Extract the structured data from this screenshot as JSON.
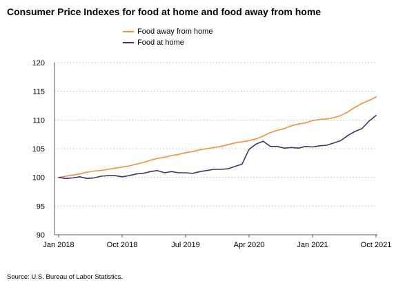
{
  "title": "Consumer Price Indexes for food at home and food away from home",
  "source": "Source: U.S. Bureau of Labor Statistics.",
  "colors": {
    "away": "#f0913a",
    "home": "#4a2f6e",
    "grid": "#bbbbbb",
    "axis": "#555555"
  },
  "chart_data": {
    "type": "line",
    "title": "Consumer Price Indexes for food at home and food away from home",
    "xlabel": "",
    "ylabel": "",
    "ylim": [
      90,
      120
    ],
    "yticks": [
      90,
      95,
      100,
      105,
      110,
      115,
      120
    ],
    "grid": "horizontal dotted",
    "legend_position": "top-center",
    "x": [
      "Jan 2018",
      "Feb 2018",
      "Mar 2018",
      "Apr 2018",
      "May 2018",
      "Jun 2018",
      "Jul 2018",
      "Aug 2018",
      "Sep 2018",
      "Oct 2018",
      "Nov 2018",
      "Dec 2018",
      "Jan 2019",
      "Feb 2019",
      "Mar 2019",
      "Apr 2019",
      "May 2019",
      "Jun 2019",
      "Jul 2019",
      "Aug 2019",
      "Sep 2019",
      "Oct 2019",
      "Nov 2019",
      "Dec 2019",
      "Jan 2020",
      "Feb 2020",
      "Mar 2020",
      "Apr 2020",
      "May 2020",
      "Jun 2020",
      "Jul 2020",
      "Aug 2020",
      "Sep 2020",
      "Oct 2020",
      "Nov 2020",
      "Dec 2020",
      "Jan 2021",
      "Feb 2021",
      "Mar 2021",
      "Apr 2021",
      "May 2021",
      "Jun 2021",
      "Jul 2021",
      "Aug 2021",
      "Sep 2021",
      "Oct 2021"
    ],
    "xtick_labels": [
      "Jan 2018",
      "Oct 2018",
      "Jul 2019",
      "Apr 2020",
      "Jan 2021",
      "Oct 2021"
    ],
    "xtick_index": [
      0,
      9,
      18,
      27,
      36,
      45
    ],
    "series": [
      {
        "name": "Food away from home",
        "color": "#f0913a",
        "values": [
          100.0,
          100.2,
          100.4,
          100.6,
          100.9,
          101.1,
          101.2,
          101.4,
          101.6,
          101.8,
          102.0,
          102.3,
          102.6,
          103.0,
          103.3,
          103.5,
          103.8,
          104.0,
          104.3,
          104.5,
          104.8,
          105.0,
          105.2,
          105.4,
          105.7,
          106.0,
          106.2,
          106.4,
          106.7,
          107.2,
          107.8,
          108.2,
          108.5,
          109.0,
          109.3,
          109.5,
          109.9,
          110.1,
          110.2,
          110.4,
          110.8,
          111.4,
          112.2,
          112.9,
          113.4,
          114.0
        ]
      },
      {
        "name": "Food at home",
        "color": "#4a2f6e",
        "values": [
          100.0,
          99.8,
          99.9,
          100.1,
          99.8,
          99.9,
          100.2,
          100.3,
          100.3,
          100.1,
          100.3,
          100.6,
          100.7,
          101.0,
          101.2,
          100.8,
          101.0,
          100.8,
          100.8,
          100.7,
          101.0,
          101.2,
          101.4,
          101.4,
          101.5,
          101.9,
          102.3,
          104.9,
          105.8,
          106.3,
          105.4,
          105.4,
          105.1,
          105.2,
          105.1,
          105.4,
          105.3,
          105.5,
          105.6,
          106.0,
          106.4,
          107.3,
          108.0,
          108.5,
          109.8,
          110.8
        ]
      }
    ]
  }
}
